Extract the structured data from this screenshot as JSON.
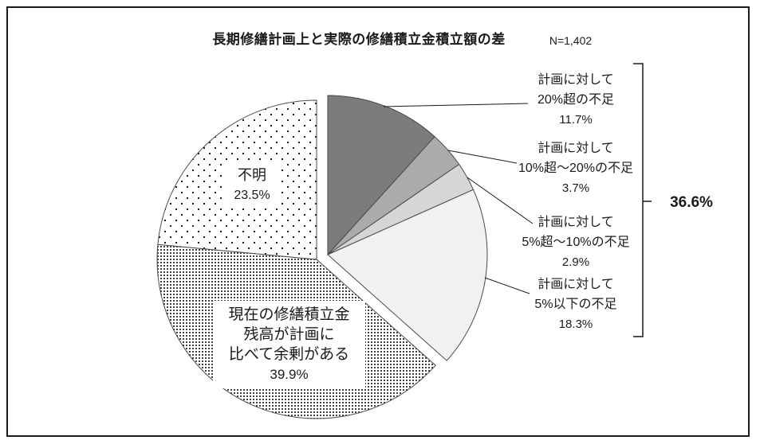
{
  "header": {
    "title": "長期修繕計画上と実際の修繕積立金積立額の差",
    "sample_size": "N=1,402"
  },
  "chart_data": {
    "type": "pie",
    "title": "長期修繕計画上と実際の修繕積立金積立額の差",
    "sample_size": "N=1,402",
    "unit": "%",
    "direction": "clockwise",
    "start_angle": "12-oclock",
    "slices": [
      {
        "label": "計画に対して20%超の不足",
        "value": 11.7,
        "fill": "#7c7c7c",
        "group": "shortfall"
      },
      {
        "label": "計画に対して10%超～20%の不足",
        "value": 3.7,
        "fill": "#ababab",
        "group": "shortfall"
      },
      {
        "label": "計画に対して5%超～10%の不足",
        "value": 2.9,
        "fill": "#d6d6d6",
        "group": "shortfall"
      },
      {
        "label": "計画に対して5%以下の不足",
        "value": 18.3,
        "fill": "#f1f1f0",
        "group": "shortfall"
      },
      {
        "label": "現在の修繕積立金残高が計画に比べて余剰がある",
        "value": 39.9,
        "pattern": "dense-dots",
        "group": "other"
      },
      {
        "label": "不明",
        "value": 23.5,
        "pattern": "sparse-dots",
        "group": "other"
      }
    ],
    "shortfall_total": "36.6%",
    "legend_position": "callouts"
  },
  "callouts": [
    {
      "lines": [
        "計画に対して",
        "20%超の不足",
        "11.7%"
      ]
    },
    {
      "lines": [
        "計画に対して",
        "10%超～20%の不足",
        "3.7%"
      ]
    },
    {
      "lines": [
        "計画に対して",
        "5%超～10%の不足",
        "2.9%"
      ]
    },
    {
      "lines": [
        "計画に対して",
        "5%以下の不足",
        "18.3%"
      ]
    }
  ],
  "inner_labels": {
    "unknown": {
      "lines": [
        "不明",
        "23.5%"
      ]
    },
    "surplus": {
      "lines": [
        "現在の修繕積立金",
        "残高が計画に",
        "比べて余剰がある",
        "39.9%"
      ]
    }
  },
  "bracket": {
    "total_label": "36.6%"
  },
  "colors": {
    "background": "#ffffff",
    "border": "#1a1a1a",
    "slice_stroke": "#4a4a4a",
    "text": "#1a1a1a",
    "leader_line": "#1a1a1a"
  }
}
